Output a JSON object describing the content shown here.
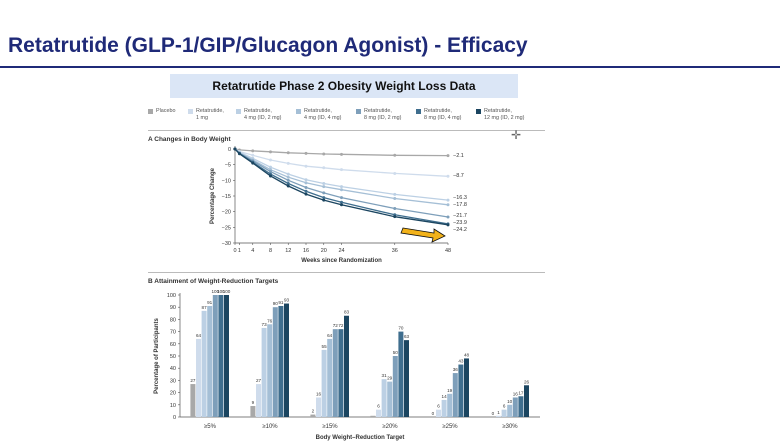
{
  "slide": {
    "title": "Retatrutide (GLP-1/GIP/Glucagon Agonist) - Efficacy",
    "subtitle": "Retatrutide Phase 2 Obesity  Weight Loss Data"
  },
  "legend": [
    {
      "line1": "Placebo",
      "line2": "",
      "color": "#a8a8a8"
    },
    {
      "line1": "Retatrutide,",
      "line2": "1 mg",
      "color": "#cfdcec"
    },
    {
      "line1": "Retatrutide,",
      "line2": "4 mg (ID, 2 mg)",
      "color": "#bcd0e4"
    },
    {
      "line1": "Retatrutide,",
      "line2": "4 mg (ID, 4 mg)",
      "color": "#a5bfd6"
    },
    {
      "line1": "Retatrutide,",
      "line2": "8 mg (ID, 2 mg)",
      "color": "#7e9fba"
    },
    {
      "line1": "Retatrutide,",
      "line2": "8 mg (ID, 4 mg)",
      "color": "#3f6e8e"
    },
    {
      "line1": "Retatrutide,",
      "line2": "12 mg (ID, 2 mg)",
      "color": "#1b4560"
    }
  ],
  "chart_data": [
    {
      "type": "line",
      "title": "A  Changes in Body Weight",
      "xlabel": "Weeks since Randomization",
      "ylabel": "Percentage Change",
      "x": [
        0,
        1,
        4,
        8,
        12,
        16,
        20,
        24,
        36,
        48
      ],
      "xticks": [
        "0",
        "1",
        "4",
        "8",
        "12",
        "16",
        "20",
        "24",
        "36",
        "48"
      ],
      "yticks": [
        "0",
        "-5",
        "-10",
        "-15",
        "-20",
        "-25",
        "-30"
      ],
      "ylim": [
        -30,
        0
      ],
      "xlim": [
        0,
        48
      ],
      "grid": false,
      "series": [
        {
          "name": "Placebo",
          "color": "#a8a8a8",
          "values": [
            0,
            -0.3,
            -0.6,
            -0.9,
            -1.2,
            -1.4,
            -1.6,
            -1.7,
            -2.0,
            -2.1
          ],
          "end_label": "-2.1"
        },
        {
          "name": "Retatrutide, 1 mg",
          "color": "#cfdcec",
          "values": [
            0,
            -0.8,
            -2.0,
            -3.5,
            -4.6,
            -5.5,
            -6.0,
            -6.6,
            -7.8,
            -8.7
          ],
          "end_label": "-8.7"
        },
        {
          "name": "Retatrutide, 4 mg (ID, 2 mg)",
          "color": "#bcd0e4",
          "values": [
            0,
            -1.0,
            -3.0,
            -5.8,
            -8.0,
            -9.8,
            -11.0,
            -12.0,
            -14.5,
            -16.3
          ],
          "end_label": "-16.3"
        },
        {
          "name": "Retatrutide, 4 mg (ID, 4 mg)",
          "color": "#a5bfd6",
          "values": [
            0,
            -1.2,
            -3.5,
            -6.6,
            -9.0,
            -10.8,
            -12.0,
            -13.0,
            -15.8,
            -17.8
          ],
          "end_label": "-17.8"
        },
        {
          "name": "Retatrutide, 8 mg (ID, 2 mg)",
          "color": "#7e9fba",
          "values": [
            0,
            -1.3,
            -3.8,
            -7.2,
            -10.0,
            -12.3,
            -14.0,
            -15.5,
            -19.0,
            -21.7
          ],
          "end_label": "-21.7"
        },
        {
          "name": "Retatrutide, 8 mg (ID, 4 mg)",
          "color": "#3f6e8e",
          "values": [
            0,
            -1.4,
            -4.2,
            -8.0,
            -11.0,
            -13.5,
            -15.5,
            -17.0,
            -21.0,
            -23.9
          ],
          "end_label": "-23.9"
        },
        {
          "name": "Retatrutide, 12 mg (ID, 2 mg)",
          "color": "#1b4560",
          "values": [
            0,
            -1.5,
            -4.5,
            -8.6,
            -11.8,
            -14.4,
            -16.3,
            -17.8,
            -21.6,
            -24.2
          ],
          "end_label": "-24.2"
        }
      ]
    },
    {
      "type": "bar",
      "title": "B  Attainment of Weight-Reduction Targets",
      "xlabel": "Body Weight–Reduction Target",
      "ylabel": "Percentage of Participants",
      "categories": [
        "≥5%",
        "≥10%",
        "≥15%",
        "≥20%",
        "≥25%",
        "≥30%"
      ],
      "yticks": [
        "0",
        "10",
        "20",
        "30",
        "40",
        "50",
        "60",
        "70",
        "80",
        "90",
        "100"
      ],
      "ylim": [
        0,
        100
      ],
      "series": [
        {
          "name": "Placebo",
          "color": "#a8a8a8",
          "values": [
            27,
            9,
            2,
            1,
            0,
            0
          ],
          "labels": [
            "27",
            "9",
            "2",
            "",
            "0",
            "0"
          ]
        },
        {
          "name": "Retatrutide, 1 mg",
          "color": "#cfdcec",
          "values": [
            64,
            27,
            16,
            6,
            6,
            1
          ],
          "labels": [
            "64",
            "27",
            "16",
            "6",
            "6",
            "1"
          ]
        },
        {
          "name": "Retatrutide, 4 mg (ID, 2 mg)",
          "color": "#bcd0e4",
          "values": [
            87,
            73,
            55,
            31,
            14,
            6
          ],
          "labels": [
            "87",
            "73",
            "55",
            "31",
            "14",
            "6"
          ]
        },
        {
          "name": "Retatrutide, 4 mg (ID, 4 mg)",
          "color": "#a5bfd6",
          "values": [
            91,
            76,
            64,
            29,
            19,
            10
          ],
          "labels": [
            "91",
            "76",
            "64",
            "29",
            "19",
            "10"
          ]
        },
        {
          "name": "Retatrutide, 8 mg (ID, 2 mg)",
          "color": "#7e9fba",
          "values": [
            100,
            90,
            72,
            50,
            36,
            16
          ],
          "labels": [
            "100",
            "90",
            "72",
            "50",
            "36",
            "16"
          ]
        },
        {
          "name": "Retatrutide, 8 mg (ID, 4 mg)",
          "color": "#3f6e8e",
          "values": [
            100,
            91,
            72,
            70,
            43,
            17
          ],
          "labels": [
            "100",
            "91",
            "72",
            "70",
            "43",
            "17"
          ]
        },
        {
          "name": "Retatrutide, 12 mg (ID, 2 mg)",
          "color": "#1b4560",
          "values": [
            100,
            93,
            83,
            63,
            48,
            26
          ],
          "labels": [
            "100",
            "93",
            "83",
            "63",
            "48",
            "26"
          ]
        }
      ]
    }
  ]
}
